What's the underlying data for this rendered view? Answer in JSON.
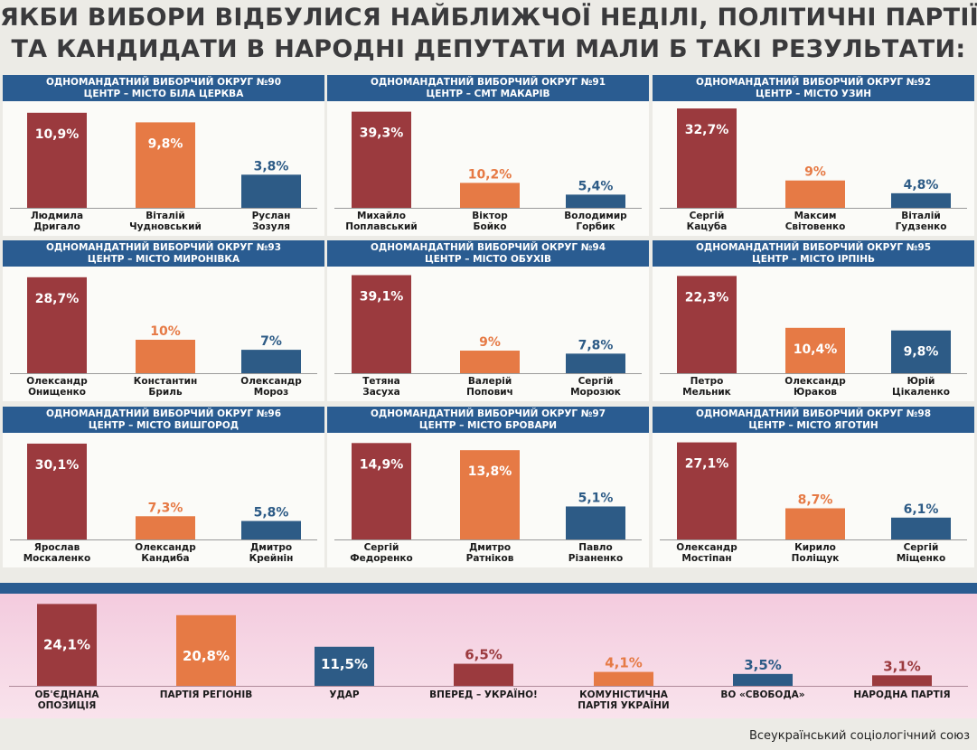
{
  "headline": {
    "line1": "ЯКБИ ВИБОРИ ВІДБУЛИСЯ НАЙБЛИЖЧОЇ НЕДІЛІ, ПОЛІТИЧНІ ПАРТІЇ",
    "line2": "ТА КАНДИДАТИ В НАРОДНІ ДЕПУТАТИ МАЛИ Б ТАКІ РЕЗУЛЬТАТИ:"
  },
  "colors": {
    "first": "#9b3a3e",
    "second": "#e67a45",
    "third": "#2d5b86",
    "band": "#2a5c91"
  },
  "source": "Всеукраїнський соціологічний союз",
  "chart_data": [
    {
      "type": "bar",
      "title": "ОДНОМАНДАТНИЙ ВИБОРЧИЙ ОКРУГ №90",
      "subtitle": "ЦЕНТР – МІСТО БІЛА ЦЕРКВА",
      "categories": [
        [
          "Людмила",
          "Дригало"
        ],
        [
          "Віталій",
          "Чудновський"
        ],
        [
          "Руслан",
          "Зозуля"
        ]
      ],
      "values": [
        10.9,
        9.8,
        3.8
      ],
      "labels": [
        "10,9%",
        "9,8%",
        "3,8%"
      ],
      "ylim": [
        0,
        11.5
      ]
    },
    {
      "type": "bar",
      "title": "ОДНОМАНДАТНИЙ ВИБОРЧИЙ ОКРУГ №91",
      "subtitle": "ЦЕНТР – СМТ МАКАРІВ",
      "categories": [
        [
          "Михайло",
          "Поплавський"
        ],
        [
          "Віктор",
          "Бойко"
        ],
        [
          "Володимир",
          "Горбик"
        ]
      ],
      "values": [
        39.3,
        10.2,
        5.4
      ],
      "labels": [
        "39,3%",
        "10,2%",
        "5,4%"
      ],
      "ylim": [
        0,
        41
      ]
    },
    {
      "type": "bar",
      "title": "ОДНОМАНДАТНИЙ ВИБОРЧИЙ ОКРУГ №92",
      "subtitle": "ЦЕНТР – МІСТО УЗИН",
      "categories": [
        [
          "Сергій",
          "Кацуба"
        ],
        [
          "Максим",
          "Світовенко"
        ],
        [
          "Віталій",
          "Гудзенко"
        ]
      ],
      "values": [
        32.7,
        9,
        4.8
      ],
      "labels": [
        "32,7%",
        "9%",
        "4,8%"
      ],
      "ylim": [
        0,
        33
      ]
    },
    {
      "type": "bar",
      "title": "ОДНОМАНДАТНИЙ ВИБОРЧИЙ ОКРУГ №93",
      "subtitle": "ЦЕНТР – МІСТО МИРОНІВКА",
      "categories": [
        [
          "Олександр",
          "Онищенко"
        ],
        [
          "Константин",
          "Бриль"
        ],
        [
          "Олександр",
          "Мороз"
        ]
      ],
      "values": [
        28.7,
        10,
        7
      ],
      "labels": [
        "28,7%",
        "10%",
        "7%"
      ],
      "ylim": [
        0,
        30
      ]
    },
    {
      "type": "bar",
      "title": "ОДНОМАНДАТНИЙ ВИБОРЧИЙ ОКРУГ №94",
      "subtitle": "ЦЕНТР – МІСТО ОБУХІВ",
      "categories": [
        [
          "Тетяна",
          "Засуха"
        ],
        [
          "Валерій",
          "Попович"
        ],
        [
          "Сергій",
          "Морозюк"
        ]
      ],
      "values": [
        39.1,
        9,
        7.8
      ],
      "labels": [
        "39,1%",
        "9%",
        "7,8%"
      ],
      "ylim": [
        0,
        40
      ]
    },
    {
      "type": "bar",
      "title": "ОДНОМАНДАТНИЙ ВИБОРЧИЙ ОКРУГ №95",
      "subtitle": "ЦЕНТР – МІСТО ІРПІНЬ",
      "categories": [
        [
          "Петро",
          "Мельник"
        ],
        [
          "Олександр",
          "Юраков"
        ],
        [
          "Юрій",
          "Цікаленко"
        ]
      ],
      "values": [
        22.3,
        10.4,
        9.8
      ],
      "labels": [
        "22,3%",
        "10,4%",
        "9,8%"
      ],
      "ylim": [
        0,
        23
      ]
    },
    {
      "type": "bar",
      "title": "ОДНОМАНДАТНИЙ ВИБОРЧИЙ ОКРУГ №96",
      "subtitle": "ЦЕНТР – МІСТО ВИШГОРОД",
      "categories": [
        [
          "Ярослав",
          "Москаленко"
        ],
        [
          "Олександр",
          "Кандиба"
        ],
        [
          "Дмитро",
          "Крейнін"
        ]
      ],
      "values": [
        30.1,
        7.3,
        5.8
      ],
      "labels": [
        "30,1%",
        "7,3%",
        "5,8%"
      ],
      "ylim": [
        0,
        31.5
      ]
    },
    {
      "type": "bar",
      "title": "ОДНОМАНДАТНИЙ ВИБОРЧИЙ ОКРУГ №97",
      "subtitle": "ЦЕНТР – МІСТО БРОВАРИ",
      "categories": [
        [
          "Сергій",
          "Федоренко"
        ],
        [
          "Дмитро",
          "Ратніков"
        ],
        [
          "Павло",
          "Різаненко"
        ]
      ],
      "values": [
        14.9,
        13.8,
        5.1
      ],
      "labels": [
        "14,9%",
        "13,8%",
        "5,1%"
      ],
      "ylim": [
        0,
        15.5
      ]
    },
    {
      "type": "bar",
      "title": "ОДНОМАНДАТНИЙ ВИБОРЧИЙ ОКРУГ №98",
      "subtitle": "ЦЕНТР – МІСТО ЯГОТИН",
      "categories": [
        [
          "Олександр",
          "Мостіпан"
        ],
        [
          "Кирило",
          "Поліщук"
        ],
        [
          "Сергій",
          "Міщенко"
        ]
      ],
      "values": [
        27.1,
        8.7,
        6.1
      ],
      "labels": [
        "27,1%",
        "8,7%",
        "6,1%"
      ],
      "ylim": [
        0,
        28
      ]
    },
    {
      "type": "bar",
      "title": "",
      "categories": [
        [
          "ОБ'ЄДНАНА",
          "ОПОЗИЦІЯ"
        ],
        [
          "ПАРТІЯ РЕГІОНІВ"
        ],
        [
          "УДАР"
        ],
        [
          "ВПЕРЕД – УКРАЇНО!"
        ],
        [
          "КОМУНІСТИЧНА",
          "ПАРТІЯ УКРАЇНИ"
        ],
        [
          "ВО «СВОБОДА»"
        ],
        [
          "НАРОДНА ПАРТІЯ"
        ]
      ],
      "values": [
        24.1,
        20.8,
        11.5,
        6.5,
        4.1,
        3.5,
        3.1
      ],
      "labels": [
        "24,1%",
        "20,8%",
        "11,5%",
        "6,5%",
        "4,1%",
        "3,5%",
        "3,1%"
      ],
      "colors": [
        "first",
        "second",
        "third",
        "first",
        "second",
        "third",
        "first"
      ],
      "ylim": [
        0,
        25
      ]
    }
  ]
}
